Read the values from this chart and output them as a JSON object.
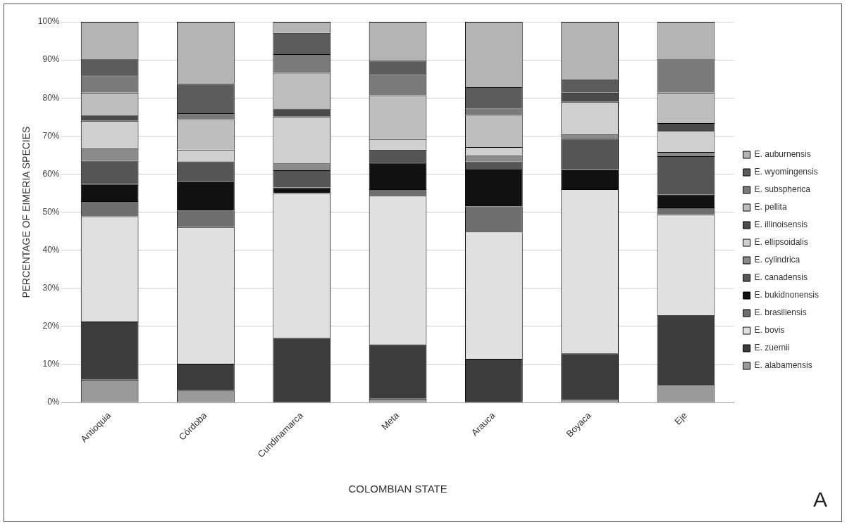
{
  "chart_data": {
    "type": "bar",
    "stacked": true,
    "xlabel": "COLOMBIAN STATE",
    "ylabel": "PERCENTAGE OF EIMERIA SPECIES",
    "categories": [
      "Antioquia",
      "Córdoba",
      "Cundinamarca",
      "Meta",
      "Arauca",
      "Boyaca",
      "Eje"
    ],
    "series": [
      {
        "name": "E. alabamensis",
        "color": "#9a9a9a",
        "values": [
          6,
          3.2,
          0,
          1,
          0,
          0.7,
          4.6
        ]
      },
      {
        "name": "E. zuernii",
        "color": "#3c3c3c",
        "values": [
          15.3,
          7,
          17,
          14.3,
          11.5,
          12.2,
          18.4
        ]
      },
      {
        "name": "E. bovis",
        "color": "#e0e0e0",
        "values": [
          27.6,
          35.9,
          38,
          39,
          33.4,
          43.1,
          26.4
        ]
      },
      {
        "name": "E. brasiliensis",
        "color": "#6e6e6e",
        "values": [
          4,
          4.3,
          0,
          1.7,
          6.6,
          0,
          1.8
        ]
      },
      {
        "name": "E. bukidnonensis",
        "color": "#111111",
        "values": [
          4.5,
          7.7,
          1.5,
          7,
          9.7,
          5.3,
          3.4
        ]
      },
      {
        "name": "E. canadensis",
        "color": "#555555",
        "values": [
          6.1,
          5.2,
          4.5,
          3.4,
          2.1,
          8,
          10.1
        ]
      },
      {
        "name": "E. cylindrica",
        "color": "#8a8a8a",
        "values": [
          3.3,
          0,
          1.8,
          0,
          1.7,
          1.2,
          1.1
        ]
      },
      {
        "name": "E. ellipsoidalis",
        "color": "#d0d0d0",
        "values": [
          7.2,
          3.1,
          12.3,
          2.8,
          2.1,
          8.5,
          5.5
        ]
      },
      {
        "name": "E. illinoisensis",
        "color": "#4a4a4a",
        "values": [
          1.5,
          0,
          2.1,
          0,
          0,
          2.4,
          2.1
        ]
      },
      {
        "name": "E. pellita",
        "color": "#bebebe",
        "values": [
          5.9,
          8,
          9.4,
          11.5,
          8.4,
          0,
          8
        ]
      },
      {
        "name": "E. subspherica",
        "color": "#7a7a7a",
        "values": [
          4.5,
          1.6,
          4.9,
          5.6,
          1.7,
          0,
          8.9
        ]
      },
      {
        "name": "E. wyomingensis",
        "color": "#5c5c5c",
        "values": [
          4.4,
          7.7,
          5.6,
          3.5,
          5.6,
          3.5,
          0
        ]
      },
      {
        "name": "E. auburnensis",
        "color": "#b4b4b4",
        "values": [
          9.7,
          16.3,
          2.9,
          10.2,
          17.2,
          15.1,
          9.7
        ]
      }
    ],
    "ylim": [
      0,
      100
    ],
    "yticks": [
      {
        "value": 0,
        "label": "0%"
      },
      {
        "value": 10,
        "label": "10%"
      },
      {
        "value": 20,
        "label": "20%"
      },
      {
        "value": 30,
        "label": "30%"
      },
      {
        "value": 40,
        "label": "40%"
      },
      {
        "value": 50,
        "label": "50%"
      },
      {
        "value": 60,
        "label": "60%"
      },
      {
        "value": 70,
        "label": "70%"
      },
      {
        "value": 80,
        "label": "80%"
      },
      {
        "value": 90,
        "label": "90%"
      },
      {
        "value": 100,
        "label": "100%"
      }
    ],
    "grid": "y",
    "legend": "right",
    "annotations": [
      "A"
    ]
  }
}
